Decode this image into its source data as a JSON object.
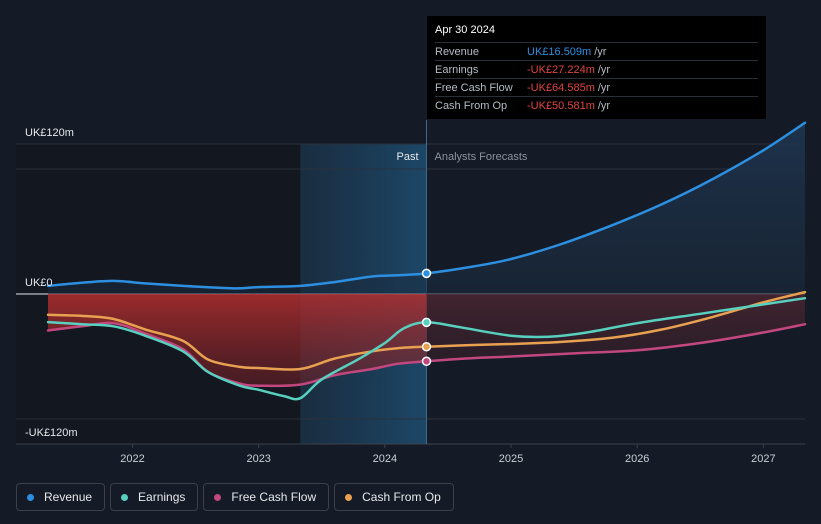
{
  "chart_data": {
    "type": "line",
    "currency_labels": {
      "top": "UK£120m",
      "zero": "UK£0",
      "bottom": "-UK£120m"
    },
    "ylim": [
      -120,
      120
    ],
    "xlim": [
      2021.33,
      2027.33
    ],
    "x_ticks": [
      "2022",
      "2023",
      "2024",
      "2025",
      "2026",
      "2027"
    ],
    "x_tick_values": [
      2022,
      2023,
      2024,
      2025,
      2026,
      2027
    ],
    "past_label": "Past",
    "forecast_label": "Analysts Forecasts",
    "divider_x": 2024.33,
    "past_band_start": 2023.33,
    "series": [
      {
        "name": "Revenue",
        "color": "#2d8fe0",
        "x": [
          2021.33,
          2021.6,
          2021.85,
          2022.1,
          2022.4,
          2022.8,
          2023.0,
          2023.33,
          2023.6,
          2023.9,
          2024.1,
          2024.33,
          2024.7,
          2025.0,
          2025.4,
          2025.8,
          2026.2,
          2026.6,
          2027.0,
          2027.33
        ],
        "y": [
          6.5,
          9,
          10.5,
          8.5,
          6.5,
          4.5,
          5.5,
          6.5,
          9.5,
          14,
          15,
          16.5,
          22,
          28,
          40,
          55,
          72,
          92,
          115,
          137
        ]
      },
      {
        "name": "Earnings",
        "color": "#58d0bf",
        "x": [
          2021.33,
          2021.6,
          2021.85,
          2022.1,
          2022.4,
          2022.6,
          2022.85,
          2023.0,
          2023.2,
          2023.33,
          2023.5,
          2023.8,
          2024.0,
          2024.15,
          2024.33,
          2024.6,
          2025.0,
          2025.3,
          2025.6,
          2026.0,
          2026.5,
          2027.0,
          2027.33
        ],
        "y": [
          -27,
          -29,
          -31,
          -40,
          -55,
          -75,
          -88,
          -92,
          -98,
          -100,
          -82,
          -62,
          -47,
          -33,
          -27.2,
          -32,
          -40,
          -41,
          -37,
          -28,
          -19,
          -10,
          -4
        ]
      },
      {
        "name": "Free Cash Flow",
        "color": "#c2477f",
        "x": [
          2021.33,
          2021.6,
          2021.85,
          2022.1,
          2022.4,
          2022.6,
          2022.85,
          2023.0,
          2023.33,
          2023.6,
          2023.9,
          2024.1,
          2024.33,
          2024.7,
          2025.0,
          2025.5,
          2026.0,
          2026.5,
          2027.0,
          2027.33
        ],
        "y": [
          -35,
          -31,
          -28,
          -38,
          -53,
          -75,
          -86,
          -88,
          -87,
          -78,
          -72,
          -67,
          -64.6,
          -61.5,
          -60,
          -57,
          -54,
          -47,
          -37,
          -29
        ]
      },
      {
        "name": "Cash From Op",
        "color": "#e8a150",
        "x": [
          2021.33,
          2021.6,
          2021.85,
          2022.1,
          2022.4,
          2022.6,
          2022.85,
          2023.0,
          2023.33,
          2023.6,
          2023.9,
          2024.1,
          2024.33,
          2024.7,
          2025.0,
          2025.4,
          2025.8,
          2026.2,
          2026.6,
          2027.0,
          2027.33
        ],
        "y": [
          -20,
          -21,
          -24,
          -34,
          -45,
          -63,
          -70,
          -71,
          -72,
          -62,
          -55,
          -52,
          -50.6,
          -49,
          -48,
          -46,
          -42,
          -34,
          -22,
          -8,
          1.5
        ]
      }
    ]
  },
  "tooltip": {
    "date": "Apr 30 2024",
    "unit": "/yr",
    "rows": [
      {
        "label": "Revenue",
        "value": "UK£16.509m",
        "color": "#2d8fe0"
      },
      {
        "label": "Earnings",
        "value": "-UK£27.224m",
        "color": "#e0453f"
      },
      {
        "label": "Free Cash Flow",
        "value": "-UK£64.585m",
        "color": "#e0453f"
      },
      {
        "label": "Cash From Op",
        "value": "-UK£50.581m",
        "color": "#e0453f"
      }
    ]
  },
  "legend": {
    "items": [
      {
        "label": "Revenue",
        "color": "#2d8fe0"
      },
      {
        "label": "Earnings",
        "color": "#58d0bf"
      },
      {
        "label": "Free Cash Flow",
        "color": "#c2477f"
      },
      {
        "label": "Cash From Op",
        "color": "#e8a150"
      }
    ]
  }
}
